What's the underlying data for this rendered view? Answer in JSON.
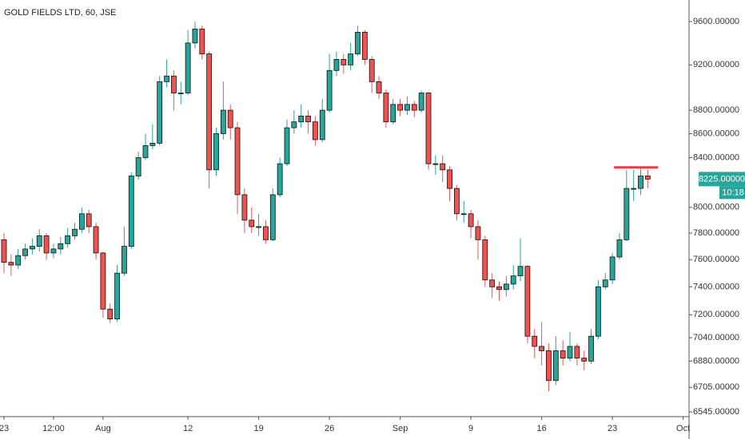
{
  "chart_data": {
    "type": "candlestick",
    "title": "GOLD FIELDS LTD, 60, JSE",
    "categories": [
      "23",
      null,
      null,
      null,
      null,
      null,
      null,
      "12:00",
      null,
      null,
      null,
      null,
      null,
      null,
      "Aug",
      null,
      null,
      null,
      null,
      null,
      null,
      null,
      null,
      null,
      null,
      null,
      "12",
      null,
      null,
      null,
      null,
      null,
      null,
      null,
      null,
      null,
      "19",
      null,
      null,
      null,
      null,
      null,
      null,
      null,
      null,
      null,
      "26",
      null,
      null,
      null,
      null,
      null,
      null,
      null,
      null,
      null,
      "Sep",
      null,
      null,
      null,
      null,
      null,
      null,
      null,
      null,
      null,
      "9",
      null,
      null,
      null,
      null,
      null,
      null,
      null,
      null,
      null,
      "16",
      null,
      null,
      null,
      null,
      null,
      null,
      null,
      null,
      null,
      "23",
      null,
      null,
      null,
      null,
      null,
      null,
      null,
      null,
      null,
      "Oct"
    ],
    "open": [
      7750,
      7580,
      7560,
      7630,
      7680,
      7700,
      7780,
      7650,
      7680,
      7720,
      7780,
      7830,
      7950,
      7850,
      7650,
      7240,
      7170,
      7500,
      7700,
      8250,
      8400,
      8500,
      8520,
      9050,
      9100,
      8950,
      8950,
      9400,
      9530,
      9300,
      8300,
      8600,
      8800,
      8650,
      8100,
      7900,
      7850,
      7850,
      7750,
      8100,
      8350,
      8650,
      8700,
      8750,
      8700,
      8550,
      8800,
      9150,
      9250,
      9200,
      9300,
      9500,
      9250,
      9050,
      8950,
      8700,
      8850,
      8800,
      8850,
      8800,
      8950,
      8350,
      8350,
      8300,
      8150,
      7950,
      7950,
      7850,
      7750,
      7450,
      7400,
      7380,
      7420,
      7480,
      7550,
      7050,
      6980,
      6950,
      6750,
      6950,
      6900,
      6980,
      6900,
      6880,
      7050,
      7400,
      7450,
      7620,
      7750,
      8150,
      8150,
      8250,
      null,
      null,
      null,
      null,
      null
    ],
    "high": [
      7800,
      7640,
      7680,
      7720,
      7760,
      7830,
      7800,
      7720,
      7770,
      7840,
      7880,
      8000,
      7980,
      7880,
      7660,
      7280,
      7560,
      7850,
      8280,
      8450,
      8600,
      8680,
      9100,
      9250,
      9150,
      9050,
      9520,
      9600,
      9560,
      9320,
      8650,
      9050,
      8850,
      8700,
      8150,
      8000,
      7950,
      7900,
      8150,
      8400,
      8720,
      8800,
      8850,
      8800,
      8750,
      8900,
      9300,
      9320,
      9300,
      9400,
      9560,
      9520,
      9280,
      9100,
      8980,
      8900,
      8900,
      8920,
      8880,
      8970,
      8960,
      8420,
      8420,
      8330,
      8180,
      8050,
      7980,
      7900,
      7780,
      7500,
      7440,
      7480,
      7560,
      7760,
      7560,
      7100,
      7150,
      7000,
      7050,
      7020,
      7080,
      7000,
      6950,
      7100,
      7450,
      7500,
      7650,
      7800,
      8300,
      8300,
      8310,
      8300,
      null,
      null,
      null,
      null,
      null
    ],
    "low": [
      7500,
      7480,
      7530,
      7600,
      7640,
      7660,
      7600,
      7610,
      7640,
      7690,
      7750,
      7800,
      7800,
      7600,
      7180,
      7140,
      7150,
      7480,
      7680,
      8220,
      8380,
      8470,
      8500,
      9000,
      8800,
      8850,
      8930,
      9350,
      9250,
      8150,
      8250,
      8550,
      8550,
      7950,
      7800,
      7800,
      7780,
      7720,
      7740,
      8080,
      8330,
      8600,
      8650,
      8600,
      8500,
      8530,
      8780,
      9100,
      9120,
      9150,
      9280,
      9200,
      8950,
      8900,
      8650,
      8680,
      8750,
      8760,
      8740,
      8780,
      8300,
      8260,
      8200,
      8050,
      7900,
      7880,
      7760,
      7600,
      7400,
      7320,
      7300,
      7330,
      7380,
      7440,
      7000,
      6900,
      6850,
      6680,
      6720,
      6850,
      6880,
      6850,
      6820,
      6860,
      7030,
      7380,
      7420,
      7600,
      7740,
      8050,
      8100,
      8150,
      null,
      null,
      null,
      null,
      null
    ],
    "close": [
      7580,
      7560,
      7630,
      7680,
      7700,
      7780,
      7650,
      7680,
      7720,
      7780,
      7830,
      7950,
      7850,
      7650,
      7240,
      7170,
      7500,
      7700,
      8250,
      8400,
      8500,
      8520,
      9050,
      9100,
      8950,
      8950,
      9400,
      9530,
      9300,
      8300,
      8600,
      8800,
      8650,
      8100,
      7900,
      7850,
      7850,
      7750,
      8100,
      8350,
      8650,
      8700,
      8750,
      8700,
      8550,
      8800,
      9150,
      9250,
      9200,
      9300,
      9500,
      9250,
      9050,
      8950,
      8700,
      8850,
      8800,
      8850,
      8800,
      8950,
      8350,
      8350,
      8300,
      8150,
      7950,
      7950,
      7850,
      7750,
      7450,
      7400,
      7380,
      7420,
      7480,
      7550,
      7050,
      6980,
      6950,
      6750,
      6950,
      6900,
      6980,
      6900,
      6880,
      7050,
      7400,
      7450,
      7620,
      7750,
      8150,
      8150,
      8250,
      8225,
      null,
      null,
      null,
      null,
      null
    ],
    "up_color": "#26a69a",
    "down_color": "#ef5350",
    "log_scale": true,
    "ylim": [
      6515,
      9805
    ],
    "yticks": [
      {
        "value": 9600,
        "label": "9600.00000"
      },
      {
        "value": 9200,
        "label": "9200.00000"
      },
      {
        "value": 8800,
        "label": "8800.00000"
      },
      {
        "value": 8600,
        "label": "8600.00000"
      },
      {
        "value": 8400,
        "label": "8400.00000"
      },
      {
        "value": 8000,
        "label": "8000.00000"
      },
      {
        "value": 7800,
        "label": "7800.00000"
      },
      {
        "value": 7600,
        "label": "7600.00000"
      },
      {
        "value": 7400,
        "label": "7400.00000"
      },
      {
        "value": 7200,
        "label": "7200.00000"
      },
      {
        "value": 7040,
        "label": "7040.00000"
      },
      {
        "value": 6880,
        "label": "6880.00000"
      },
      {
        "value": 6705,
        "label": "6705.00000"
      },
      {
        "value": 6545,
        "label": "6545.00000"
      }
    ],
    "last_price": {
      "value": 8225,
      "label": "8225.00000"
    },
    "countdown": "10:18",
    "hline": {
      "value": 8320,
      "color": "#f23645"
    }
  }
}
